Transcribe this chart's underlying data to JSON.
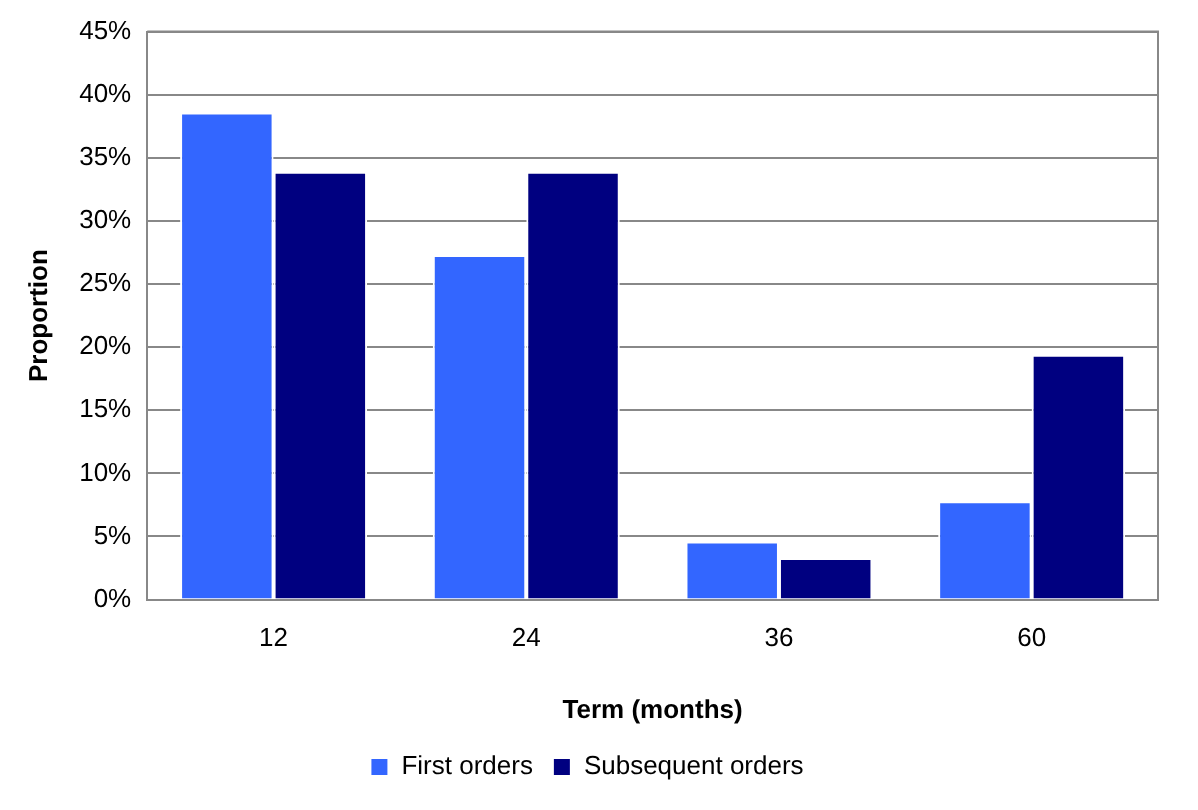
{
  "chart_data": {
    "type": "bar",
    "xlabel": "Term (months)",
    "ylabel": "Proportion",
    "categories": [
      "12",
      "24",
      "36",
      "60"
    ],
    "series": [
      {
        "name": "First orders",
        "color": "#3366ff",
        "values": [
          38.6,
          27.3,
          4.6,
          7.8
        ]
      },
      {
        "name": "Subsequent orders",
        "color": "#000080",
        "values": [
          33.9,
          33.9,
          3.3,
          19.4
        ]
      }
    ],
    "ylim": [
      0,
      45
    ],
    "yticks": [
      {
        "value": 0,
        "label": "0%"
      },
      {
        "value": 5,
        "label": "5%"
      },
      {
        "value": 10,
        "label": "10%"
      },
      {
        "value": 15,
        "label": "15%"
      },
      {
        "value": 20,
        "label": "20%"
      },
      {
        "value": 25,
        "label": "25%"
      },
      {
        "value": 30,
        "label": "30%"
      },
      {
        "value": 35,
        "label": "35%"
      },
      {
        "value": 40,
        "label": "40%"
      },
      {
        "value": 45,
        "label": "45%"
      }
    ],
    "grid": "y",
    "legend": "bottom"
  }
}
